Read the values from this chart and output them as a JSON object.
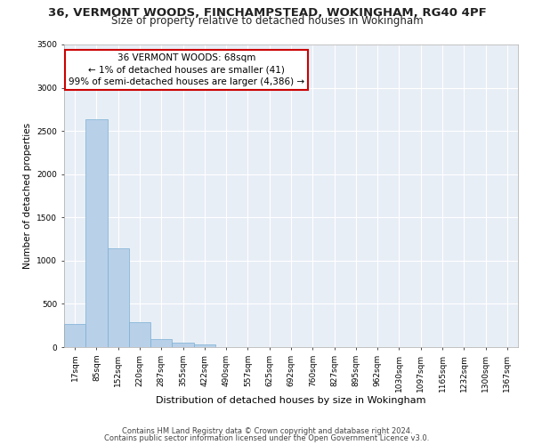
{
  "title_line1": "36, VERMONT WOODS, FINCHAMPSTEAD, WOKINGHAM, RG40 4PF",
  "title_line2": "Size of property relative to detached houses in Wokingham",
  "xlabel": "Distribution of detached houses by size in Wokingham",
  "ylabel": "Number of detached properties",
  "bar_color": "#b8d0e8",
  "bar_edge_color": "#7aafd4",
  "background_color": "#e8eef6",
  "grid_color": "#ffffff",
  "categories": [
    "17sqm",
    "85sqm",
    "152sqm",
    "220sqm",
    "287sqm",
    "355sqm",
    "422sqm",
    "490sqm",
    "557sqm",
    "625sqm",
    "692sqm",
    "760sqm",
    "827sqm",
    "895sqm",
    "962sqm",
    "1030sqm",
    "1097sqm",
    "1165sqm",
    "1232sqm",
    "1300sqm",
    "1367sqm"
  ],
  "values": [
    270,
    2640,
    1140,
    285,
    95,
    55,
    35,
    0,
    0,
    0,
    0,
    0,
    0,
    0,
    0,
    0,
    0,
    0,
    0,
    0,
    0
  ],
  "ylim": [
    0,
    3500
  ],
  "yticks": [
    0,
    500,
    1000,
    1500,
    2000,
    2500,
    3000,
    3500
  ],
  "annotation_text": "36 VERMONT WOODS: 68sqm\n← 1% of detached houses are smaller (41)\n99% of semi-detached houses are larger (4,386) →",
  "annotation_box_color": "#ffffff",
  "annotation_box_edge": "#cc0000",
  "footer_line1": "Contains HM Land Registry data © Crown copyright and database right 2024.",
  "footer_line2": "Contains public sector information licensed under the Open Government Licence v3.0.",
  "title_fontsize": 9.5,
  "subtitle_fontsize": 8.5,
  "xlabel_fontsize": 8,
  "ylabel_fontsize": 7.5,
  "tick_fontsize": 6.5,
  "footer_fontsize": 6,
  "annotation_fontsize": 7.5,
  "fig_width": 6.0,
  "fig_height": 5.0
}
